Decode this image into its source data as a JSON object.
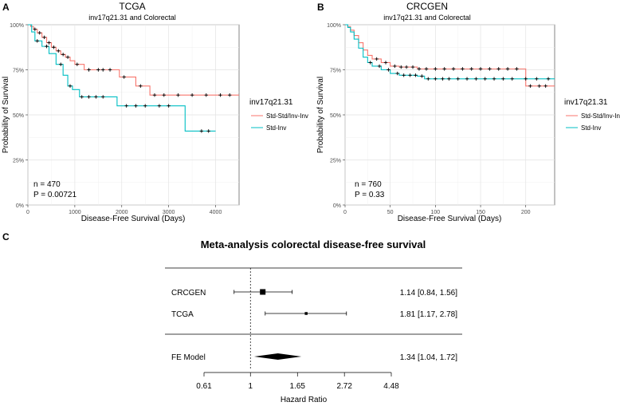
{
  "chart_data": [
    {
      "panel": "A",
      "type": "line",
      "title": "TCGA",
      "subtitle": "inv17q21.31 and Colorectal",
      "xlabel": "Disease-Free Survival (Days)",
      "ylabel": "Probability of Survival",
      "xlim": [
        0,
        4500
      ],
      "ylim": [
        0,
        1
      ],
      "xticks": [
        0,
        1000,
        2000,
        3000,
        4000
      ],
      "xtick_labels": [
        "0",
        "1000",
        "2000",
        "3000",
        "4000"
      ],
      "yticks": [
        0,
        0.25,
        0.5,
        0.75,
        1
      ],
      "ytick_labels": [
        "0%",
        "25%",
        "50%",
        "75%",
        "100%"
      ],
      "grid": true,
      "legend_title": "inv17q21.31",
      "legend_position": "right",
      "annotations": [
        "n = 470",
        "P = 0.00721"
      ],
      "series": [
        {
          "name": "Std-Std/Inv-Inv",
          "color": "#F8766D",
          "x": [
            0,
            60,
            120,
            200,
            300,
            400,
            500,
            600,
            700,
            800,
            900,
            1000,
            1200,
            1400,
            1950,
            2300,
            2600,
            4500
          ],
          "y": [
            1.0,
            0.99,
            0.975,
            0.955,
            0.93,
            0.9,
            0.875,
            0.855,
            0.835,
            0.82,
            0.8,
            0.78,
            0.75,
            0.75,
            0.71,
            0.66,
            0.61,
            0.61
          ],
          "censor_x": [
            150,
            250,
            350,
            450,
            550,
            650,
            750,
            850,
            1050,
            1300,
            1500,
            1600,
            1750,
            2050,
            2400,
            2700,
            2900,
            3200,
            3500,
            3800,
            4100,
            4300
          ]
        },
        {
          "name": "Std-Inv",
          "color": "#00BFC4",
          "x": [
            0,
            80,
            150,
            300,
            450,
            600,
            750,
            850,
            950,
            1100,
            1900,
            3350,
            4000
          ],
          "y": [
            1.0,
            0.96,
            0.91,
            0.88,
            0.84,
            0.78,
            0.72,
            0.66,
            0.64,
            0.6,
            0.55,
            0.41,
            0.41
          ],
          "censor_x": [
            200,
            400,
            700,
            900,
            1150,
            1300,
            1450,
            1600,
            2100,
            2300,
            2500,
            2800,
            3000,
            3700,
            3850
          ]
        }
      ]
    },
    {
      "panel": "B",
      "type": "line",
      "title": "CRCGEN",
      "subtitle": "inv17q21.31 and Colorectal",
      "xlabel": "Disease-Free Survival (Days)",
      "ylabel": "Probability of Survival",
      "xlim": [
        0,
        232
      ],
      "ylim": [
        0,
        1
      ],
      "xticks": [
        0,
        50,
        100,
        150,
        200
      ],
      "xtick_labels": [
        "0",
        "50",
        "100",
        "150",
        "200"
      ],
      "yticks": [
        0,
        0.25,
        0.5,
        0.75,
        1
      ],
      "ytick_labels": [
        "0%",
        "25%",
        "50%",
        "75%",
        "100%"
      ],
      "grid": true,
      "legend_title": "inv17q21.31",
      "legend_position": "right",
      "annotations": [
        "n = 760",
        "P = 0.33"
      ],
      "series": [
        {
          "name": "Std-Std/Inv-Inv",
          "color": "#F8766D",
          "x": [
            0,
            3,
            6,
            10,
            15,
            20,
            25,
            30,
            40,
            50,
            60,
            80,
            195,
            200,
            232
          ],
          "y": [
            1.0,
            0.99,
            0.97,
            0.94,
            0.9,
            0.86,
            0.83,
            0.81,
            0.79,
            0.77,
            0.765,
            0.755,
            0.755,
            0.66,
            0.66
          ],
          "censor_x": [
            35,
            45,
            55,
            62,
            68,
            75,
            82,
            90,
            100,
            110,
            120,
            130,
            140,
            150,
            160,
            170,
            180,
            190,
            205,
            215,
            222
          ]
        },
        {
          "name": "Std-Inv",
          "color": "#00BFC4",
          "x": [
            0,
            3,
            6,
            10,
            15,
            20,
            25,
            30,
            40,
            50,
            60,
            80,
            88,
            232
          ],
          "y": [
            1.0,
            0.985,
            0.96,
            0.92,
            0.87,
            0.82,
            0.79,
            0.77,
            0.75,
            0.73,
            0.72,
            0.715,
            0.7,
            0.7
          ],
          "censor_x": [
            28,
            38,
            48,
            58,
            65,
            72,
            78,
            85,
            92,
            100,
            108,
            115,
            125,
            135,
            145,
            155,
            165,
            175,
            185,
            200,
            212,
            225
          ]
        }
      ]
    },
    {
      "panel": "C",
      "type": "forest",
      "title": "Meta-analysis colorectal disease-free survival",
      "xlabel": "Hazard Ratio",
      "scale": "log",
      "xticks": [
        0.61,
        1,
        1.65,
        2.72,
        4.48
      ],
      "xtick_labels": [
        "0.61",
        "1",
        "1.65",
        "2.72",
        "4.48"
      ],
      "reference_line": 1,
      "studies": [
        {
          "name": "CRCGEN",
          "hr": 1.14,
          "lo": 0.84,
          "hi": 1.56,
          "label": "1.14 [0.84, 1.56]",
          "weight": 1.0
        },
        {
          "name": "TCGA",
          "hr": 1.81,
          "lo": 1.17,
          "hi": 2.78,
          "label": "1.81 [1.17, 2.78]",
          "weight": 0.3
        }
      ],
      "summary": {
        "name": "FE Model",
        "hr": 1.34,
        "lo": 1.04,
        "hi": 1.72,
        "label": "1.34 [1.04, 1.72]"
      }
    }
  ],
  "panel_labels": [
    "A",
    "B",
    "C"
  ]
}
